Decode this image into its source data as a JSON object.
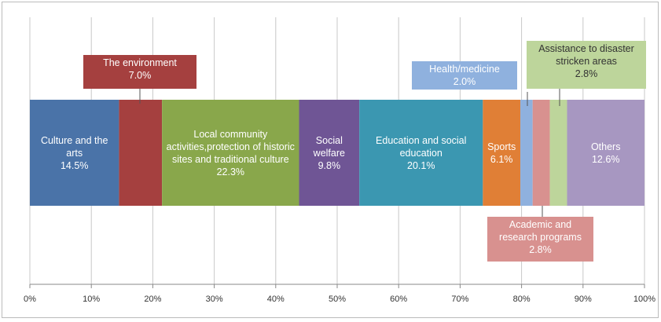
{
  "chart_data": {
    "type": "stacked-bar-horizontal",
    "xlim": [
      0,
      100
    ],
    "xticks": [
      {
        "value": 0,
        "label": "0%"
      },
      {
        "value": 10,
        "label": "10%"
      },
      {
        "value": 20,
        "label": "20%"
      },
      {
        "value": 30,
        "label": "30%"
      },
      {
        "value": 40,
        "label": "40%"
      },
      {
        "value": 50,
        "label": "50%"
      },
      {
        "value": 60,
        "label": "60%"
      },
      {
        "value": 70,
        "label": "70%"
      },
      {
        "value": 80,
        "label": "80%"
      },
      {
        "value": 90,
        "label": "90%"
      },
      {
        "value": 100,
        "label": "100%"
      }
    ],
    "grid": true,
    "series": [
      {
        "name": "Culture and the arts",
        "color": "#4a73a8",
        "values": [
          14.5
        ],
        "value_labels": [
          "14.5%"
        ]
      },
      {
        "name": "The environment",
        "color": "#a5403f",
        "values": [
          7.0
        ],
        "value_labels": [
          "7.0%"
        ]
      },
      {
        "name": "Local community activities,protection of historic sites and traditional culture",
        "color": "#89a74b",
        "values": [
          22.3
        ],
        "value_labels": [
          "22.3%"
        ]
      },
      {
        "name": "Social welfare",
        "color": "#6f5595",
        "values": [
          9.8
        ],
        "value_labels": [
          "9.8%"
        ]
      },
      {
        "name": "Education and social education",
        "color": "#3b97b1",
        "values": [
          20.1
        ],
        "value_labels": [
          "20.1%"
        ]
      },
      {
        "name": "Sports",
        "color": "#e07f36",
        "values": [
          6.1
        ],
        "value_labels": [
          "6.1%"
        ]
      },
      {
        "name": "Health/medicine",
        "color": "#8fb1de",
        "values": [
          2.0
        ],
        "value_labels": [
          "2.0%"
        ]
      },
      {
        "name": "Academic and research programs",
        "color": "#d8918f",
        "values": [
          2.8
        ],
        "value_labels": [
          "2.8%"
        ]
      },
      {
        "name": "Assistance to disaster stricken areas",
        "color": "#bdd59b",
        "values": [
          2.8
        ],
        "value_labels": [
          "2.8%"
        ]
      },
      {
        "name": "Others",
        "color": "#a797c1",
        "values": [
          12.6
        ],
        "value_labels": [
          "12.6%"
        ]
      }
    ]
  }
}
